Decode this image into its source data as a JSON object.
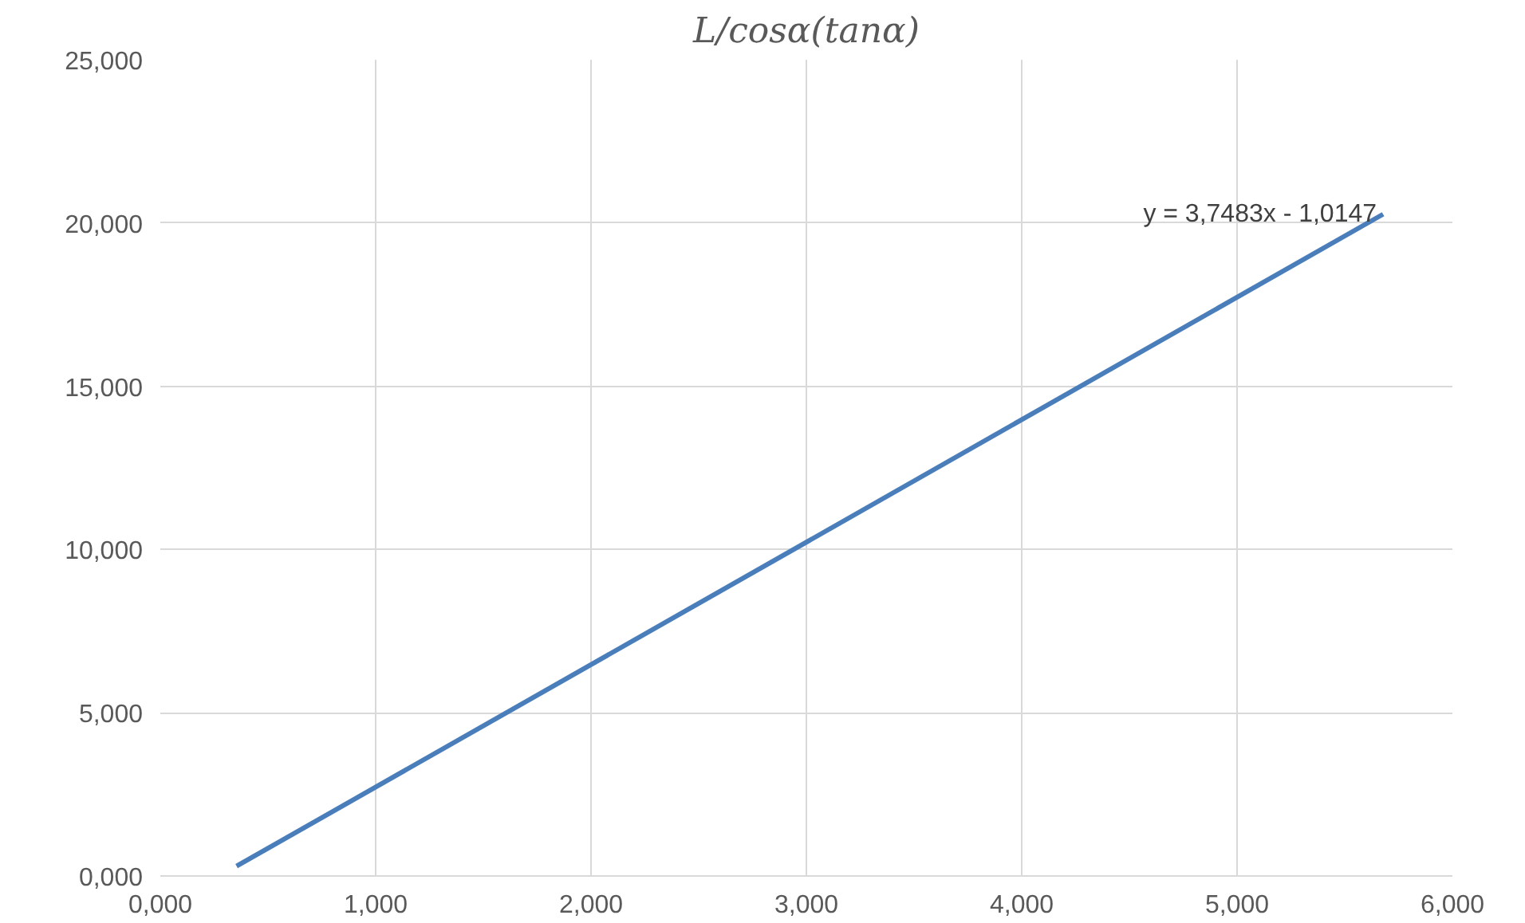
{
  "chart_data": {
    "type": "line",
    "title": "L/cosα(tanα)",
    "series": [
      {
        "color": "#4a7ebb",
        "x": [
          0.354,
          5.678
        ],
        "values": [
          0.3,
          20.27
        ]
      }
    ],
    "xlim": [
      0,
      6
    ],
    "ylim": [
      0,
      25
    ],
    "xticks": [
      {
        "value": 0,
        "label": "0,000"
      },
      {
        "value": 1,
        "label": "1,000"
      },
      {
        "value": 2,
        "label": "2,000"
      },
      {
        "value": 3,
        "label": "3,000"
      },
      {
        "value": 4,
        "label": "4,000"
      },
      {
        "value": 5,
        "label": "5,000"
      },
      {
        "value": 6,
        "label": "6,000"
      }
    ],
    "yticks": [
      {
        "value": 0,
        "label": "0,000"
      },
      {
        "value": 5,
        "label": "5,000"
      },
      {
        "value": 10,
        "label": "10,000"
      },
      {
        "value": 15,
        "label": "15,000"
      },
      {
        "value": 20,
        "label": "20,000"
      },
      {
        "value": 25,
        "label": "25,000"
      }
    ],
    "grid": true,
    "marker": "none",
    "line_style": "solid",
    "annotations": [
      "y = 3,7483x - 1,0147"
    ]
  }
}
